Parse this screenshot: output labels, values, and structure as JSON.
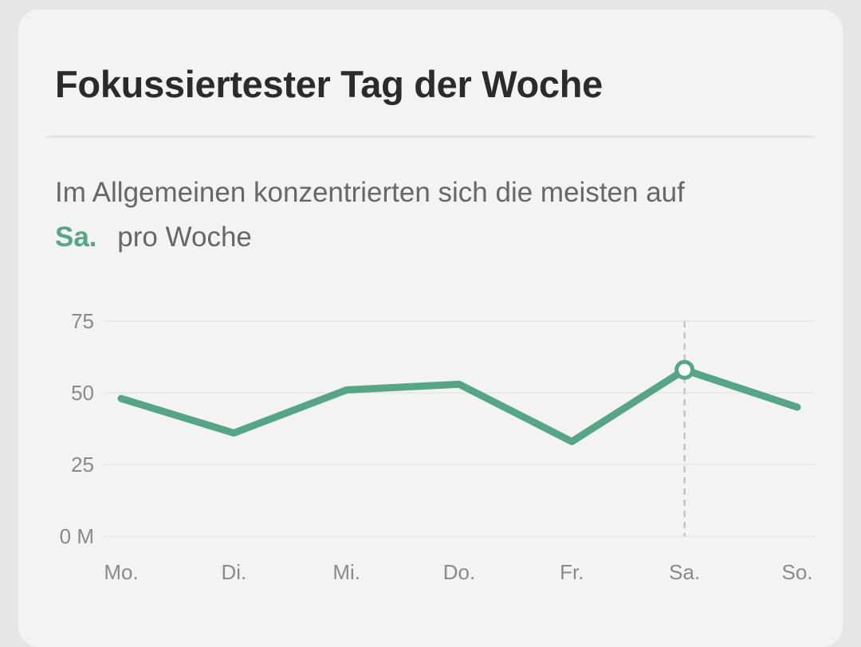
{
  "card": {
    "title": "Fokussiertester Tag der Woche",
    "description_before": "Im Allgemeinen konzentrierten sich die meisten auf",
    "highlight_day": "Sa.",
    "description_after": "pro Woche"
  },
  "colors": {
    "accent": "#56a587",
    "title": "#2b2b2b",
    "text": "#676767",
    "axis_text": "#8a8a8a",
    "grid": "#e6e6e6",
    "background": "#f3f3f3"
  },
  "chart_data": {
    "type": "line",
    "categories": [
      "Mo.",
      "Di.",
      "Mi.",
      "Do.",
      "Fr.",
      "Sa.",
      "So."
    ],
    "series": [
      {
        "values": [
          48,
          36,
          51,
          53,
          33,
          58,
          45
        ]
      }
    ],
    "y_ticks": [
      "0 M",
      "25",
      "50",
      "75"
    ],
    "y_tick_values": [
      0,
      25,
      50,
      75
    ],
    "ylim": [
      0,
      75
    ],
    "grid": true,
    "highlight_category": "Sa.",
    "highlight_index": 5
  }
}
